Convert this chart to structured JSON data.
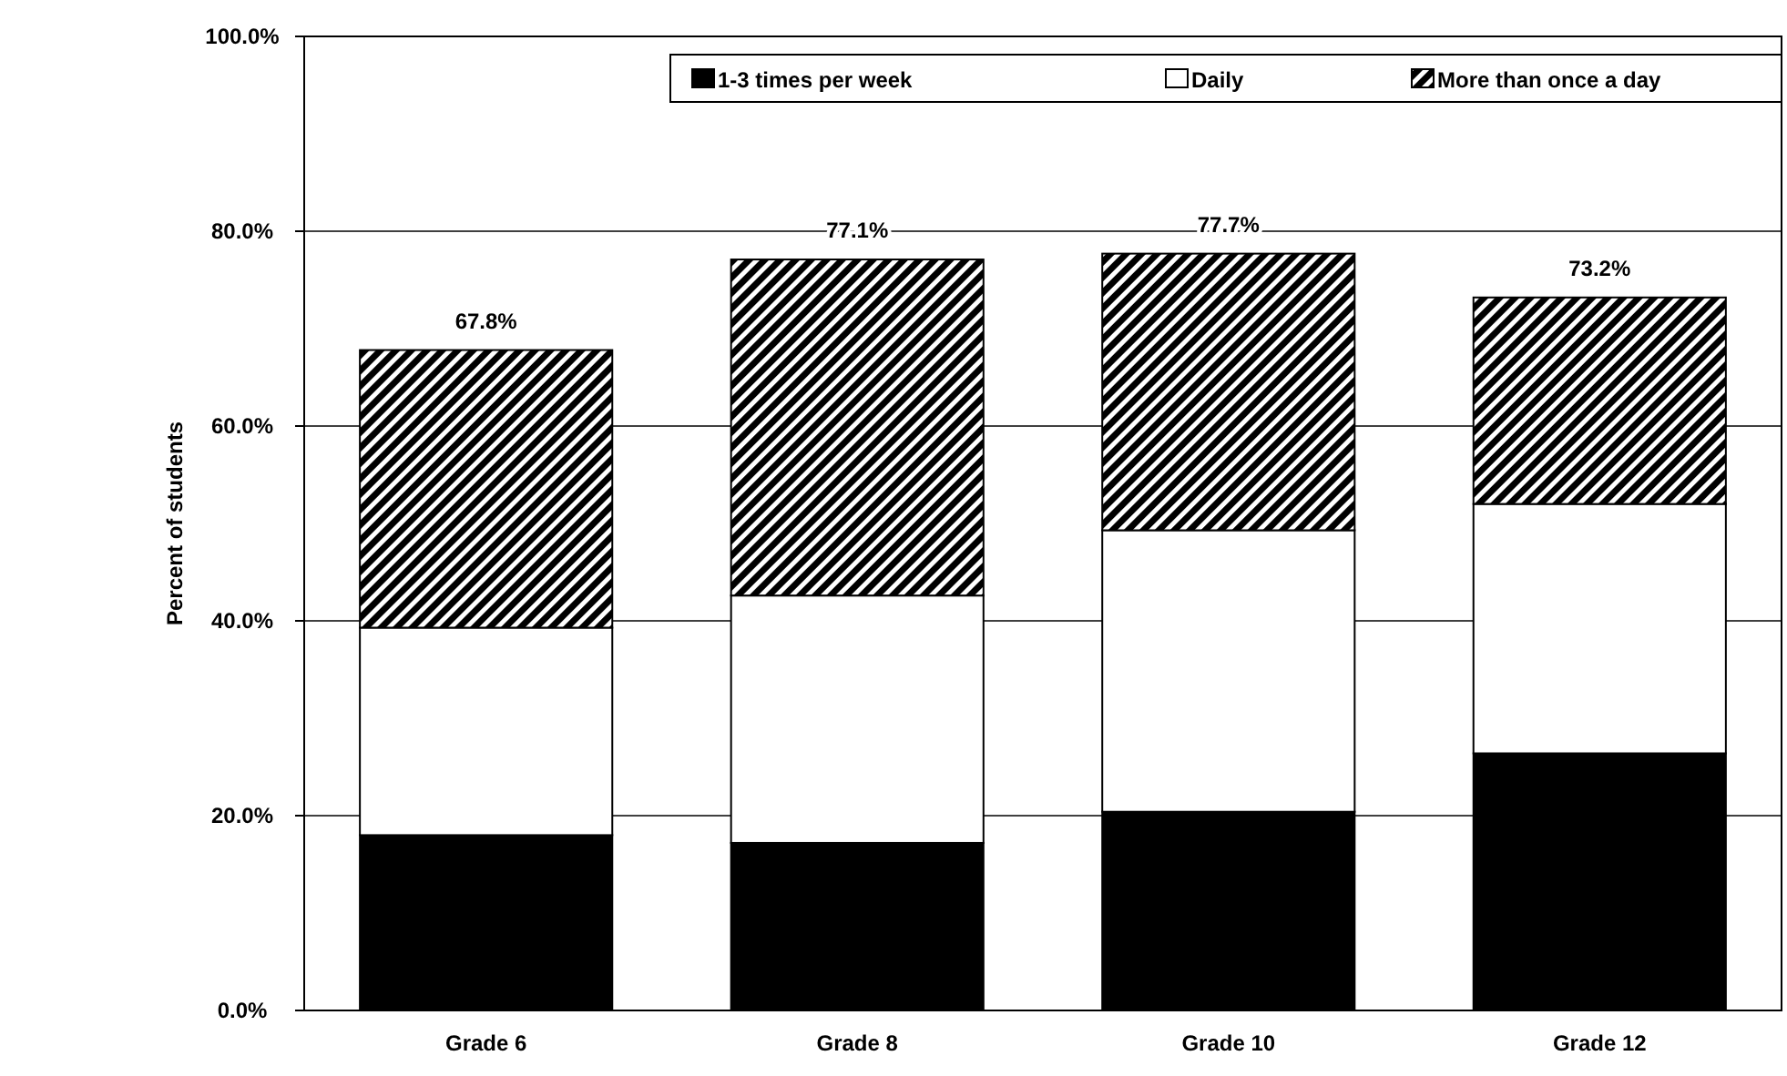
{
  "chart_data": {
    "type": "bar",
    "stacked": true,
    "ylabel": "Percent of students",
    "categories": [
      "Grade 6",
      "Grade 8",
      "Grade 10",
      "Grade 12"
    ],
    "series": [
      {
        "name": "1-3 times per week",
        "color": "#000000",
        "values": [
          18.0,
          17.2,
          20.4,
          26.4
        ]
      },
      {
        "name": "Daily",
        "color": "#ffffff",
        "values": [
          21.3,
          25.4,
          28.9,
          25.6
        ]
      },
      {
        "name": "More than once a day",
        "color": "#000000",
        "values": [
          28.5,
          34.5,
          28.4,
          21.2
        ]
      }
    ],
    "totals": [
      "67.8%",
      "77.1%",
      "77.7%",
      "73.2%"
    ],
    "ylim": [
      0,
      100
    ],
    "yticks": [
      {
        "value": 0,
        "label": "0.0%"
      },
      {
        "value": 20,
        "label": "20.0%"
      },
      {
        "value": 40,
        "label": "40.0%"
      },
      {
        "value": 60,
        "label": "60.0%"
      },
      {
        "value": 80,
        "label": "80.0%"
      },
      {
        "value": 100,
        "label": "100.0%"
      }
    ],
    "grid": "y",
    "legend": "top right"
  }
}
